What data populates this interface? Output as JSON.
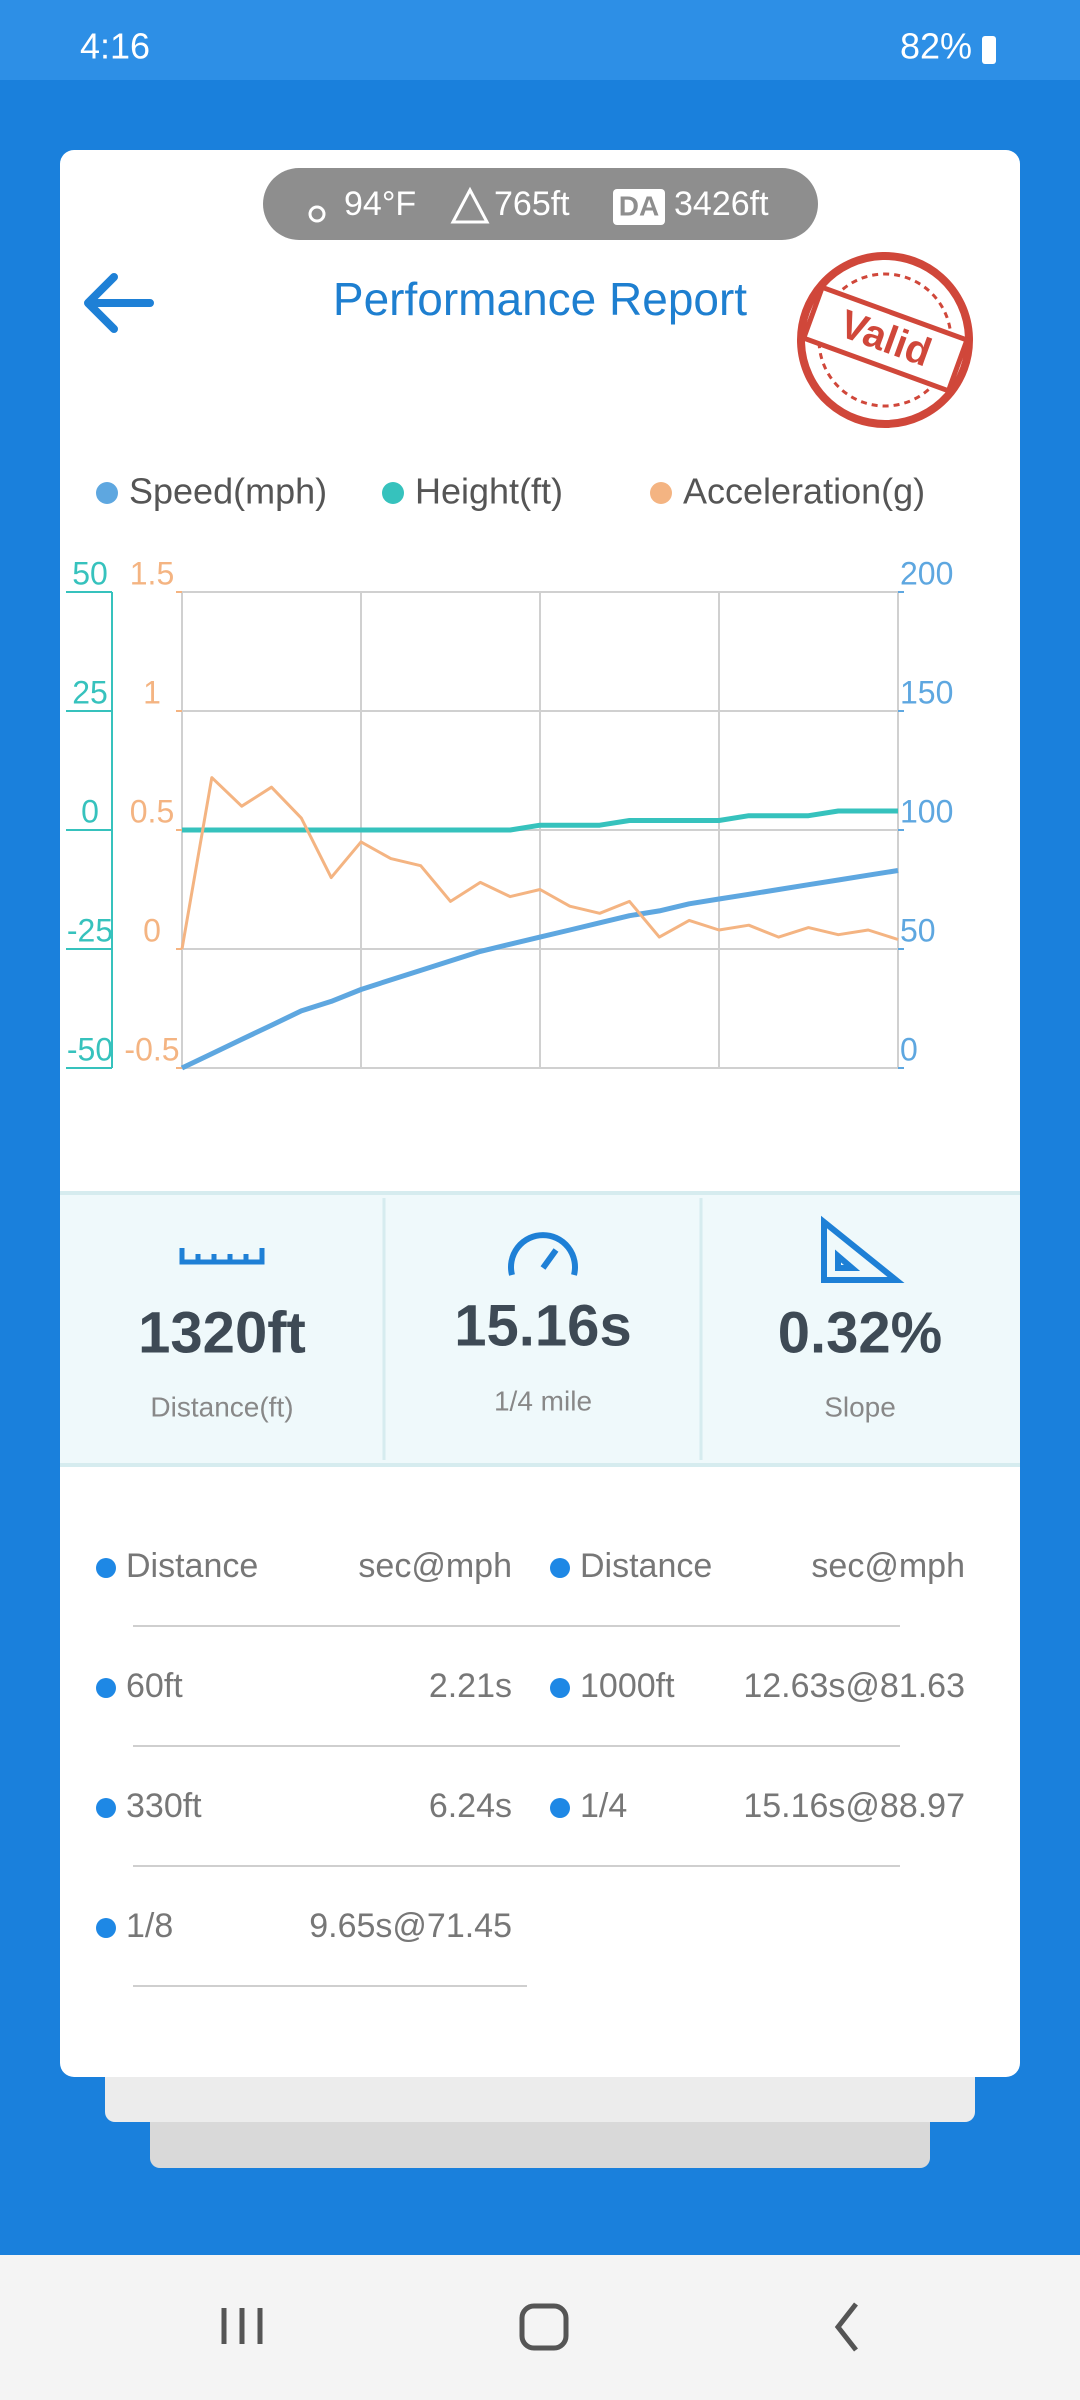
{
  "status_bar": {
    "time": "4:16",
    "battery": "82%"
  },
  "header": {
    "temperature": "94°F",
    "altitude": "765ft",
    "da_badge": "DA",
    "density_altitude": "3426ft",
    "title": "Performance Report",
    "stamp": "Valid"
  },
  "chart_data": {
    "type": "line",
    "series": [
      {
        "name": "Speed(mph)",
        "color": "#5ea7e0",
        "axis": "y2",
        "values": [
          0,
          6,
          12,
          18,
          24,
          28,
          33,
          37,
          41,
          45,
          49,
          52,
          55,
          58,
          61,
          64,
          66,
          69,
          71,
          73,
          75,
          77,
          79,
          81,
          83
        ]
      },
      {
        "name": "Height(ft)",
        "color": "#36c2bd",
        "axis": "y",
        "values": [
          0,
          0,
          0,
          0,
          0,
          0,
          0,
          0,
          0,
          0,
          0,
          0,
          1,
          1,
          1,
          2,
          2,
          2,
          2,
          3,
          3,
          3,
          4,
          4,
          4
        ]
      },
      {
        "name": "Acceleration(g)",
        "color": "#f4b482",
        "axis": "y3",
        "values": [
          0,
          0.72,
          0.6,
          0.68,
          0.55,
          0.3,
          0.45,
          0.38,
          0.35,
          0.2,
          0.28,
          0.22,
          0.25,
          0.18,
          0.15,
          0.2,
          0.05,
          0.12,
          0.08,
          0.1,
          0.05,
          0.09,
          0.06,
          0.08,
          0.04
        ]
      }
    ],
    "ylim": [
      -50,
      50
    ],
    "yticks": [
      -50,
      -25,
      0,
      25,
      50
    ],
    "y2lim": [
      0,
      200
    ],
    "y2ticks": [
      0,
      50,
      100,
      150,
      200
    ],
    "y3lim": [
      -0.5,
      1.5
    ],
    "y3ticks": [
      -0.5,
      0,
      0.5,
      1,
      1.5
    ],
    "grid": true
  },
  "stats": [
    {
      "value": "1320ft",
      "label": "Distance(ft)"
    },
    {
      "value": "15.16s",
      "label": "1/4 mile"
    },
    {
      "value": "0.32%",
      "label": "Slope"
    }
  ],
  "splits": {
    "columns": [
      {
        "header": [
          "Distance",
          "sec@mph"
        ],
        "rows": [
          [
            "60ft",
            "2.21s"
          ],
          [
            "330ft",
            "6.24s"
          ],
          [
            "1/8",
            "9.65s@71.45"
          ]
        ]
      },
      {
        "header": [
          "Distance",
          "sec@mph"
        ],
        "rows": [
          [
            "1000ft",
            "12.63s@81.63"
          ],
          [
            "1/4",
            "15.16s@88.97"
          ]
        ]
      }
    ]
  }
}
